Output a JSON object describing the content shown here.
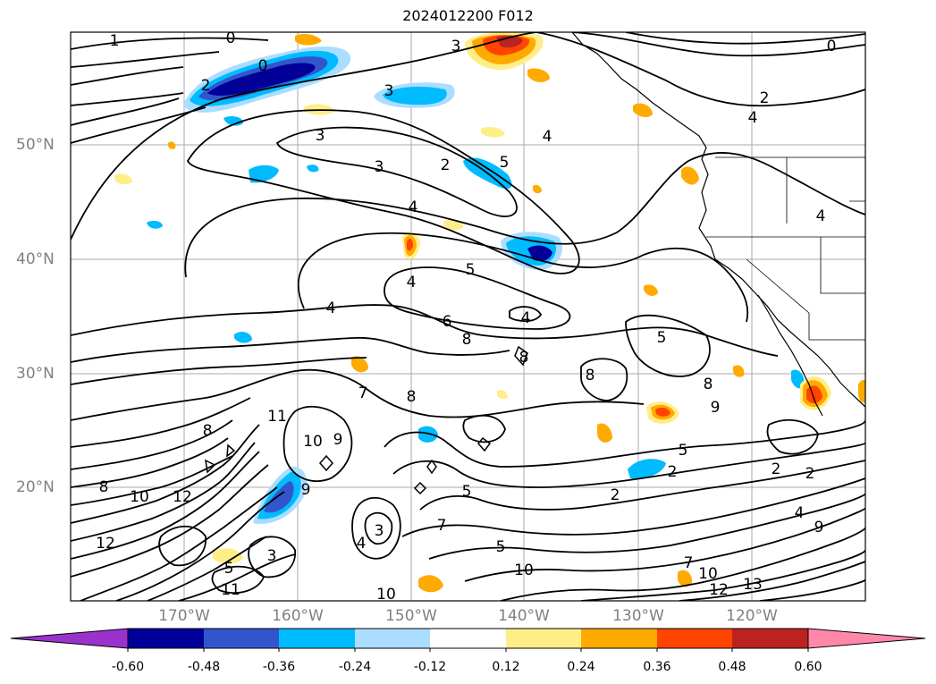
{
  "title": "2024012200 F012",
  "lat_labels": [
    "50°N",
    "40°N",
    "30°N",
    "20°N"
  ],
  "lon_labels": [
    "170°W",
    "160°W",
    "150°W",
    "140°W",
    "130°W",
    "120°W"
  ],
  "colorbar": {
    "ticks": [
      "-0.60",
      "-0.48",
      "-0.36",
      "-0.24",
      "-0.12",
      "0.12",
      "0.24",
      "0.36",
      "0.48",
      "0.60"
    ],
    "colors": [
      "#9933cc",
      "#000099",
      "#3355cc",
      "#00bbff",
      "#aaddff",
      "#ffffff",
      "#ffee88",
      "#ffaa00",
      "#ff4400",
      "#bb2222",
      "#ff88aa"
    ]
  },
  "contour_labels": [
    "1",
    "0",
    "0",
    "3",
    "0",
    "2",
    "4",
    "2",
    "3",
    "3",
    "4",
    "3",
    "2",
    "5",
    "4",
    "4",
    "5",
    "4",
    "6",
    "8",
    "4",
    "5",
    "4",
    "8",
    "8",
    "8",
    "7",
    "11",
    "8",
    "9",
    "10",
    "9",
    "8",
    "10",
    "12",
    "8",
    "12",
    "2",
    "5",
    "7",
    "2",
    "5",
    "2",
    "2",
    "4",
    "9",
    "7",
    "10",
    "10",
    "12",
    "13",
    "10",
    "5",
    "11",
    "9",
    "4",
    "3",
    "3",
    "5"
  ]
}
